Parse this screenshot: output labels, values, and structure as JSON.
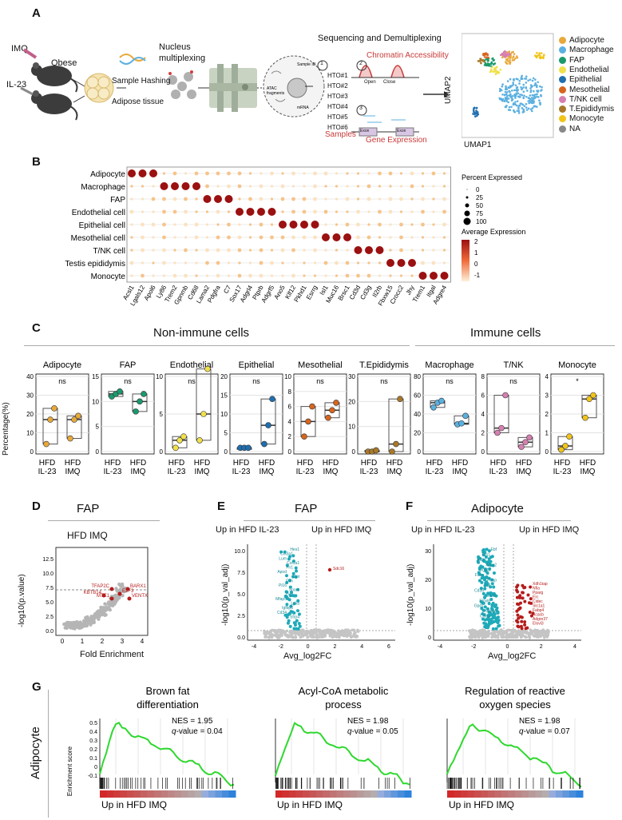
{
  "panels": [
    "A",
    "B",
    "C",
    "D",
    "E",
    "F",
    "G"
  ],
  "panelA": {
    "imq": "IMQ",
    "il23": "IL-23",
    "obese": "Obese",
    "nucleus_multiplexing": "Nucleus\nmultiplexing",
    "sample_hashing": "Sample Hashing",
    "adipose_tissue": "Adipose tissue",
    "seq_title": "Sequencing and Demultiplexing",
    "chromatin": "Chromatin Accessibility",
    "open": "Open",
    "close": "Close",
    "hto": [
      "HTO#1",
      "HTO#2",
      "HTO#3",
      "HTO#4",
      "HTO#5",
      "HTO#6"
    ],
    "samples": "Samples",
    "gene_expression": "Gene Expression",
    "exon": "Exon",
    "steps": [
      "1",
      "2",
      "3"
    ],
    "inset_labels": [
      "Sample ID",
      "ATAC fragments",
      "mRNA"
    ],
    "umap1": "UMAP1",
    "umap2": "UMAP2",
    "legend": [
      {
        "name": "Adipocyte",
        "color": "#e8a93a"
      },
      {
        "name": "Macrophage",
        "color": "#5bb0e0"
      },
      {
        "name": "FAP",
        "color": "#1a9a6c"
      },
      {
        "name": "Endothelial",
        "color": "#f0e04a"
      },
      {
        "name": "Epithelial",
        "color": "#1f6fb0"
      },
      {
        "name": "Mesothelial",
        "color": "#d6651e"
      },
      {
        "name": "T/NK cell",
        "color": "#d67fb0"
      },
      {
        "name": "T.Epididymis",
        "color": "#a8782a"
      },
      {
        "name": "Monocyte",
        "color": "#f2c418"
      },
      {
        "name": "NA",
        "color": "#888888"
      }
    ]
  },
  "panelB": {
    "rows": [
      "Adipocyte",
      "Macrophage",
      "FAP",
      "Endothelial cell",
      "Epithelial cell",
      "Mesothelial cell",
      "T/NK cell",
      "Testis epididymis",
      "Monocyte"
    ],
    "genes": [
      "Acsl1",
      "Lgals12",
      "Apol6",
      "Ly86",
      "Trem2",
      "Gpnmb",
      "Cd68",
      "Lama2",
      "Pdgfra",
      "C7",
      "Sox17",
      "Adgrl4",
      "Ptprb",
      "Adgrf5",
      "Ano5",
      "Klf12",
      "Pkhd1",
      "Esrrg",
      "Isl1",
      "Muc16",
      "Brsc1",
      "Cd3d",
      "Cd3g",
      "Il2rb",
      "Fbxw15",
      "Crocc2",
      "Jhy",
      "Trem1",
      "Itgal",
      "Adgre4"
    ],
    "size_title": "Percent Expressed",
    "size_ticks": [
      "0",
      "25",
      "50",
      "75",
      "100"
    ],
    "color_title": "Average Expression",
    "color_ticks": [
      "2",
      "1",
      "0",
      "-1"
    ],
    "high": [
      [
        1,
        1,
        1,
        0,
        0,
        0,
        0,
        0,
        0,
        0,
        0,
        0,
        0,
        0,
        0,
        0,
        0,
        0,
        0,
        0,
        0,
        0,
        0,
        0,
        0,
        0,
        0,
        0,
        0,
        0
      ],
      [
        0,
        0,
        0,
        1,
        1,
        1,
        1,
        0,
        0,
        0,
        0,
        0,
        0,
        0,
        0,
        0,
        0,
        0,
        0,
        0,
        0,
        0,
        0,
        0,
        0,
        0,
        0,
        0,
        0,
        0
      ],
      [
        0,
        0,
        0,
        0,
        0,
        0,
        0,
        1,
        1,
        1,
        0,
        0,
        0,
        0,
        0,
        0,
        0,
        0,
        0,
        0,
        0,
        0,
        0,
        0,
        0,
        0,
        0,
        0,
        0,
        0
      ],
      [
        0,
        0,
        0,
        0,
        0,
        0,
        0,
        0,
        0,
        0,
        1,
        1,
        1,
        1,
        0,
        0,
        0,
        0,
        0,
        0,
        0,
        0,
        0,
        0,
        0,
        0,
        0,
        0,
        0,
        0
      ],
      [
        0,
        0,
        0,
        0,
        0,
        0,
        0,
        0,
        0,
        0,
        0,
        0,
        0,
        0,
        1,
        1,
        1,
        1,
        0,
        0,
        0,
        0,
        0,
        0,
        0,
        0,
        0,
        0,
        0,
        0
      ],
      [
        0,
        0,
        0,
        0,
        0,
        0,
        0,
        0,
        0,
        0,
        0,
        0,
        0,
        0,
        0,
        0,
        0,
        0,
        1,
        1,
        1,
        0,
        0,
        0,
        0,
        0,
        0,
        0,
        0,
        0
      ],
      [
        0,
        0,
        0,
        0,
        0,
        0,
        0,
        0,
        0,
        0,
        0,
        0,
        0,
        0,
        0,
        0,
        0,
        0,
        0,
        0,
        0,
        1,
        1,
        1,
        0,
        0,
        0,
        0,
        0,
        0
      ],
      [
        0,
        0,
        0,
        0,
        0,
        0,
        0,
        0,
        0,
        0,
        0,
        0,
        0,
        0,
        0,
        0,
        0,
        0,
        0,
        0,
        0,
        0,
        0,
        0,
        1,
        1,
        1,
        0,
        0,
        0
      ],
      [
        0,
        0,
        0,
        0,
        0,
        0,
        0,
        0,
        0,
        0,
        0,
        0,
        0,
        0,
        0,
        0,
        0,
        0,
        0,
        0,
        0,
        0,
        0,
        0,
        0,
        0,
        0,
        1,
        1,
        1
      ]
    ]
  },
  "panelC": {
    "non_immune_title": "Non-immune cells",
    "immune_title": "Immune cells",
    "ylabel": "Percentage(%)",
    "xlabels": [
      "HFD\nIL-23",
      "HFD\nIMQ"
    ],
    "plots": [
      {
        "title": "Adipocyte",
        "color": "#e8a93a",
        "ymax": 40,
        "ticks": [
          "0",
          "10",
          "20",
          "30",
          "40"
        ],
        "sig": "ns",
        "il23": [
          4,
          17,
          23
        ],
        "imq": [
          7,
          17,
          19
        ]
      },
      {
        "title": "FAP",
        "color": "#1a9a6c",
        "ymax": 15,
        "ticks": [
          "0",
          "5",
          "10",
          "15"
        ],
        "sig": "ns",
        "il23": [
          11,
          11.5,
          12
        ],
        "imq": [
          8,
          10,
          11.5
        ]
      },
      {
        "title": "Endothelial",
        "color": "#f0e04a",
        "ymax": 10,
        "ticks": [
          "0",
          "5",
          "10"
        ],
        "sig": "ns",
        "il23": [
          0.5,
          1.5,
          2
        ],
        "imq": [
          1.5,
          5,
          11
        ]
      },
      {
        "title": "Epithelial",
        "color": "#1f6fb0",
        "ymax": 20,
        "ticks": [
          "0",
          "5",
          "10",
          "15",
          "20"
        ],
        "sig": "ns",
        "il23": [
          1,
          1,
          1
        ],
        "imq": [
          2,
          7,
          14
        ]
      },
      {
        "title": "Mesothelial",
        "color": "#d6651e",
        "ymax": 10,
        "ticks": [
          "0",
          "2",
          "4",
          "6",
          "8",
          "10"
        ],
        "sig": "ns",
        "il23": [
          2,
          4,
          6
        ],
        "imq": [
          4.5,
          5.5,
          6.5
        ]
      },
      {
        "title": "T.Epididymis",
        "color": "#a8782a",
        "ymax": 30,
        "ticks": [
          "0",
          "10",
          "20",
          "30"
        ],
        "sig": "ns",
        "il23": [
          0,
          0,
          0.5
        ],
        "imq": [
          0,
          3,
          21
        ]
      },
      {
        "title": "Macrophage",
        "color": "#5bb0e0",
        "ymax": 80,
        "ticks": [
          "0",
          "20",
          "40",
          "60",
          "80"
        ],
        "sig": "ns",
        "il23": [
          47,
          52,
          54
        ],
        "imq": [
          29,
          30,
          38
        ]
      },
      {
        "title": "T/NK",
        "color": "#d67fb0",
        "ymax": 8,
        "ticks": [
          "0",
          "2",
          "4",
          "6",
          "8"
        ],
        "sig": "ns",
        "il23": [
          2,
          2.5,
          6
        ],
        "imq": [
          0.5,
          1,
          1.5
        ]
      },
      {
        "title": "Monocyte",
        "color": "#f2c418",
        "ymax": 4,
        "ticks": [
          "0",
          "1",
          "2",
          "3",
          "4"
        ],
        "sig": "*",
        "il23": [
          0.1,
          0.3,
          0.8
        ],
        "imq": [
          1.8,
          2.8,
          3
        ]
      }
    ]
  },
  "panelD": {
    "title": "FAP",
    "subtitle": "HFD IMQ",
    "ylabel": "-log10(p.value)",
    "xlabel": "Fold Enrichment",
    "xticks": [
      "0",
      "1",
      "2",
      "3",
      "4"
    ],
    "yticks": [
      "0.0",
      "2.5",
      "5.0",
      "7.5",
      "10.0",
      "12.5"
    ],
    "genes": [
      "TFAP2C",
      "BARX1",
      "KBTB14",
      "E2F3",
      "MTE1",
      "VENTX"
    ]
  },
  "panelE": {
    "title": "FAP",
    "left": "Up in HFD IL-23",
    "right": "Up in HFD IMQ",
    "ylabel": "-log10(p_val_adj)",
    "xlabel": "Avg_log2FC",
    "xticks": [
      "-4",
      "-2",
      "0",
      "2",
      "4",
      "6"
    ],
    "yticks": [
      "0.0",
      "2.5",
      "5.0",
      "7.5",
      "10.0"
    ],
    "genes": [
      "Hes1",
      "Col3a1",
      "Lum",
      "Col1a1",
      "Fn1",
      "Apod",
      "Dpt",
      "Gsn",
      "Pi16",
      "Sparc",
      "Dcn",
      "Mfap5",
      "Ly6a",
      "Igfbp6",
      "Cd34",
      "Sfrp4",
      "Ccl11",
      "Fbln1",
      "Ctsk",
      "Dbp",
      "Tbs1",
      "Ly6c1",
      "Cyp4b1",
      "Rsab",
      "Ttn",
      "Gapdh",
      "Rgs5",
      "Rps2",
      "Vim",
      "Cfd",
      "Bgn",
      "Fos"
    ],
    "up_gene": "Sdc16"
  },
  "panelF": {
    "title": "Adipocyte",
    "left": "Up in HFD IL-23",
    "right": "Up in HFD IMQ",
    "ylabel": "-log10(p_val_adj)",
    "xlabel": "Avg_log2FC",
    "xticks": [
      "-4",
      "-2",
      "0",
      "2",
      "4"
    ],
    "yticks": [
      "0",
      "10",
      "20",
      "30"
    ],
    "genes": [
      "Ebf",
      "Tns1",
      "Klf9",
      "Acss2",
      "Dgat2",
      "Fasn",
      "Thrsp",
      "Lpl",
      "Cd36",
      "Pck1",
      "Elovl6",
      "Gpd1",
      "Adipoq",
      "Cidea",
      "Retn",
      "Scd1",
      "Acaca"
    ],
    "up_genes": [
      "Xdh1tap",
      "Nfia",
      "Pparg",
      "Erc",
      "Cidec",
      "Slc1a1",
      "Fabp4",
      "Acacb",
      "Adgre37",
      "Elovl3"
    ]
  },
  "panelG": {
    "side_label": "Adipocyte",
    "ylabel": "Enrichment score",
    "yticks": [
      "0.5",
      "0.4",
      "0.3",
      "0.2",
      "0.1",
      "0",
      "-0.1"
    ],
    "xlabel": "Up in HFD IMQ",
    "plots": [
      {
        "title": "Brown fat\ndifferentiation",
        "nes": "NES = 1.95",
        "q_italic": "q",
        "q_rest": "-value = 0.04"
      },
      {
        "title": "Acyl-CoA metabolic\nprocess",
        "nes": "NES = 1.98",
        "q_italic": "q",
        "q_rest": "-value = 0.05"
      },
      {
        "title": "Regulation of reactive\noxygen species",
        "nes": "NES = 1.98",
        "q_italic": "q",
        "q_rest": "-value = 0.07"
      }
    ]
  }
}
